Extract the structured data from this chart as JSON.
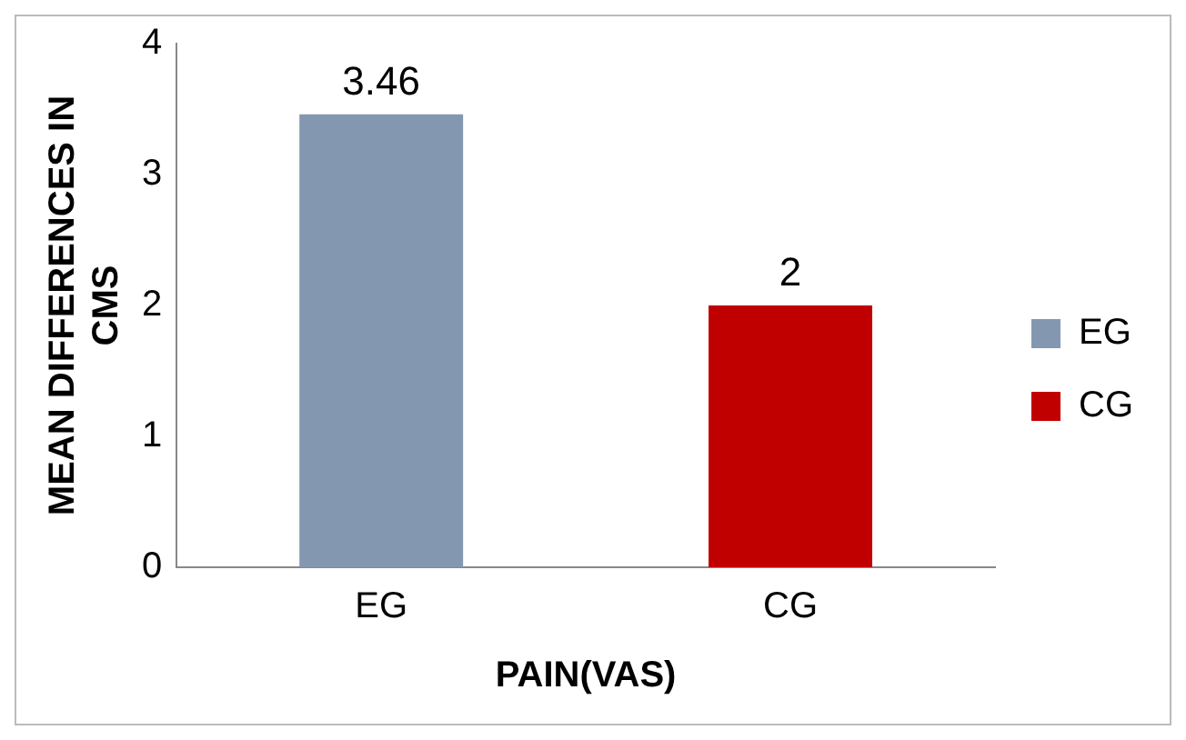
{
  "chart_data": {
    "type": "bar",
    "xlabel": "PAIN(VAS)",
    "ylabel": "MEAN DIFFERENCES IN CMS",
    "categories": [
      "EG",
      "CG"
    ],
    "series": [
      {
        "name": "EG",
        "color": "#8497b0",
        "values": [
          3.46,
          null
        ]
      },
      {
        "name": "CG",
        "color": "#c00000",
        "values": [
          null,
          2
        ]
      }
    ],
    "ylim": [
      0,
      4
    ],
    "yticks": [
      0,
      1,
      2,
      3,
      4
    ],
    "data_labels": true,
    "grid": false,
    "legend": "right"
  }
}
